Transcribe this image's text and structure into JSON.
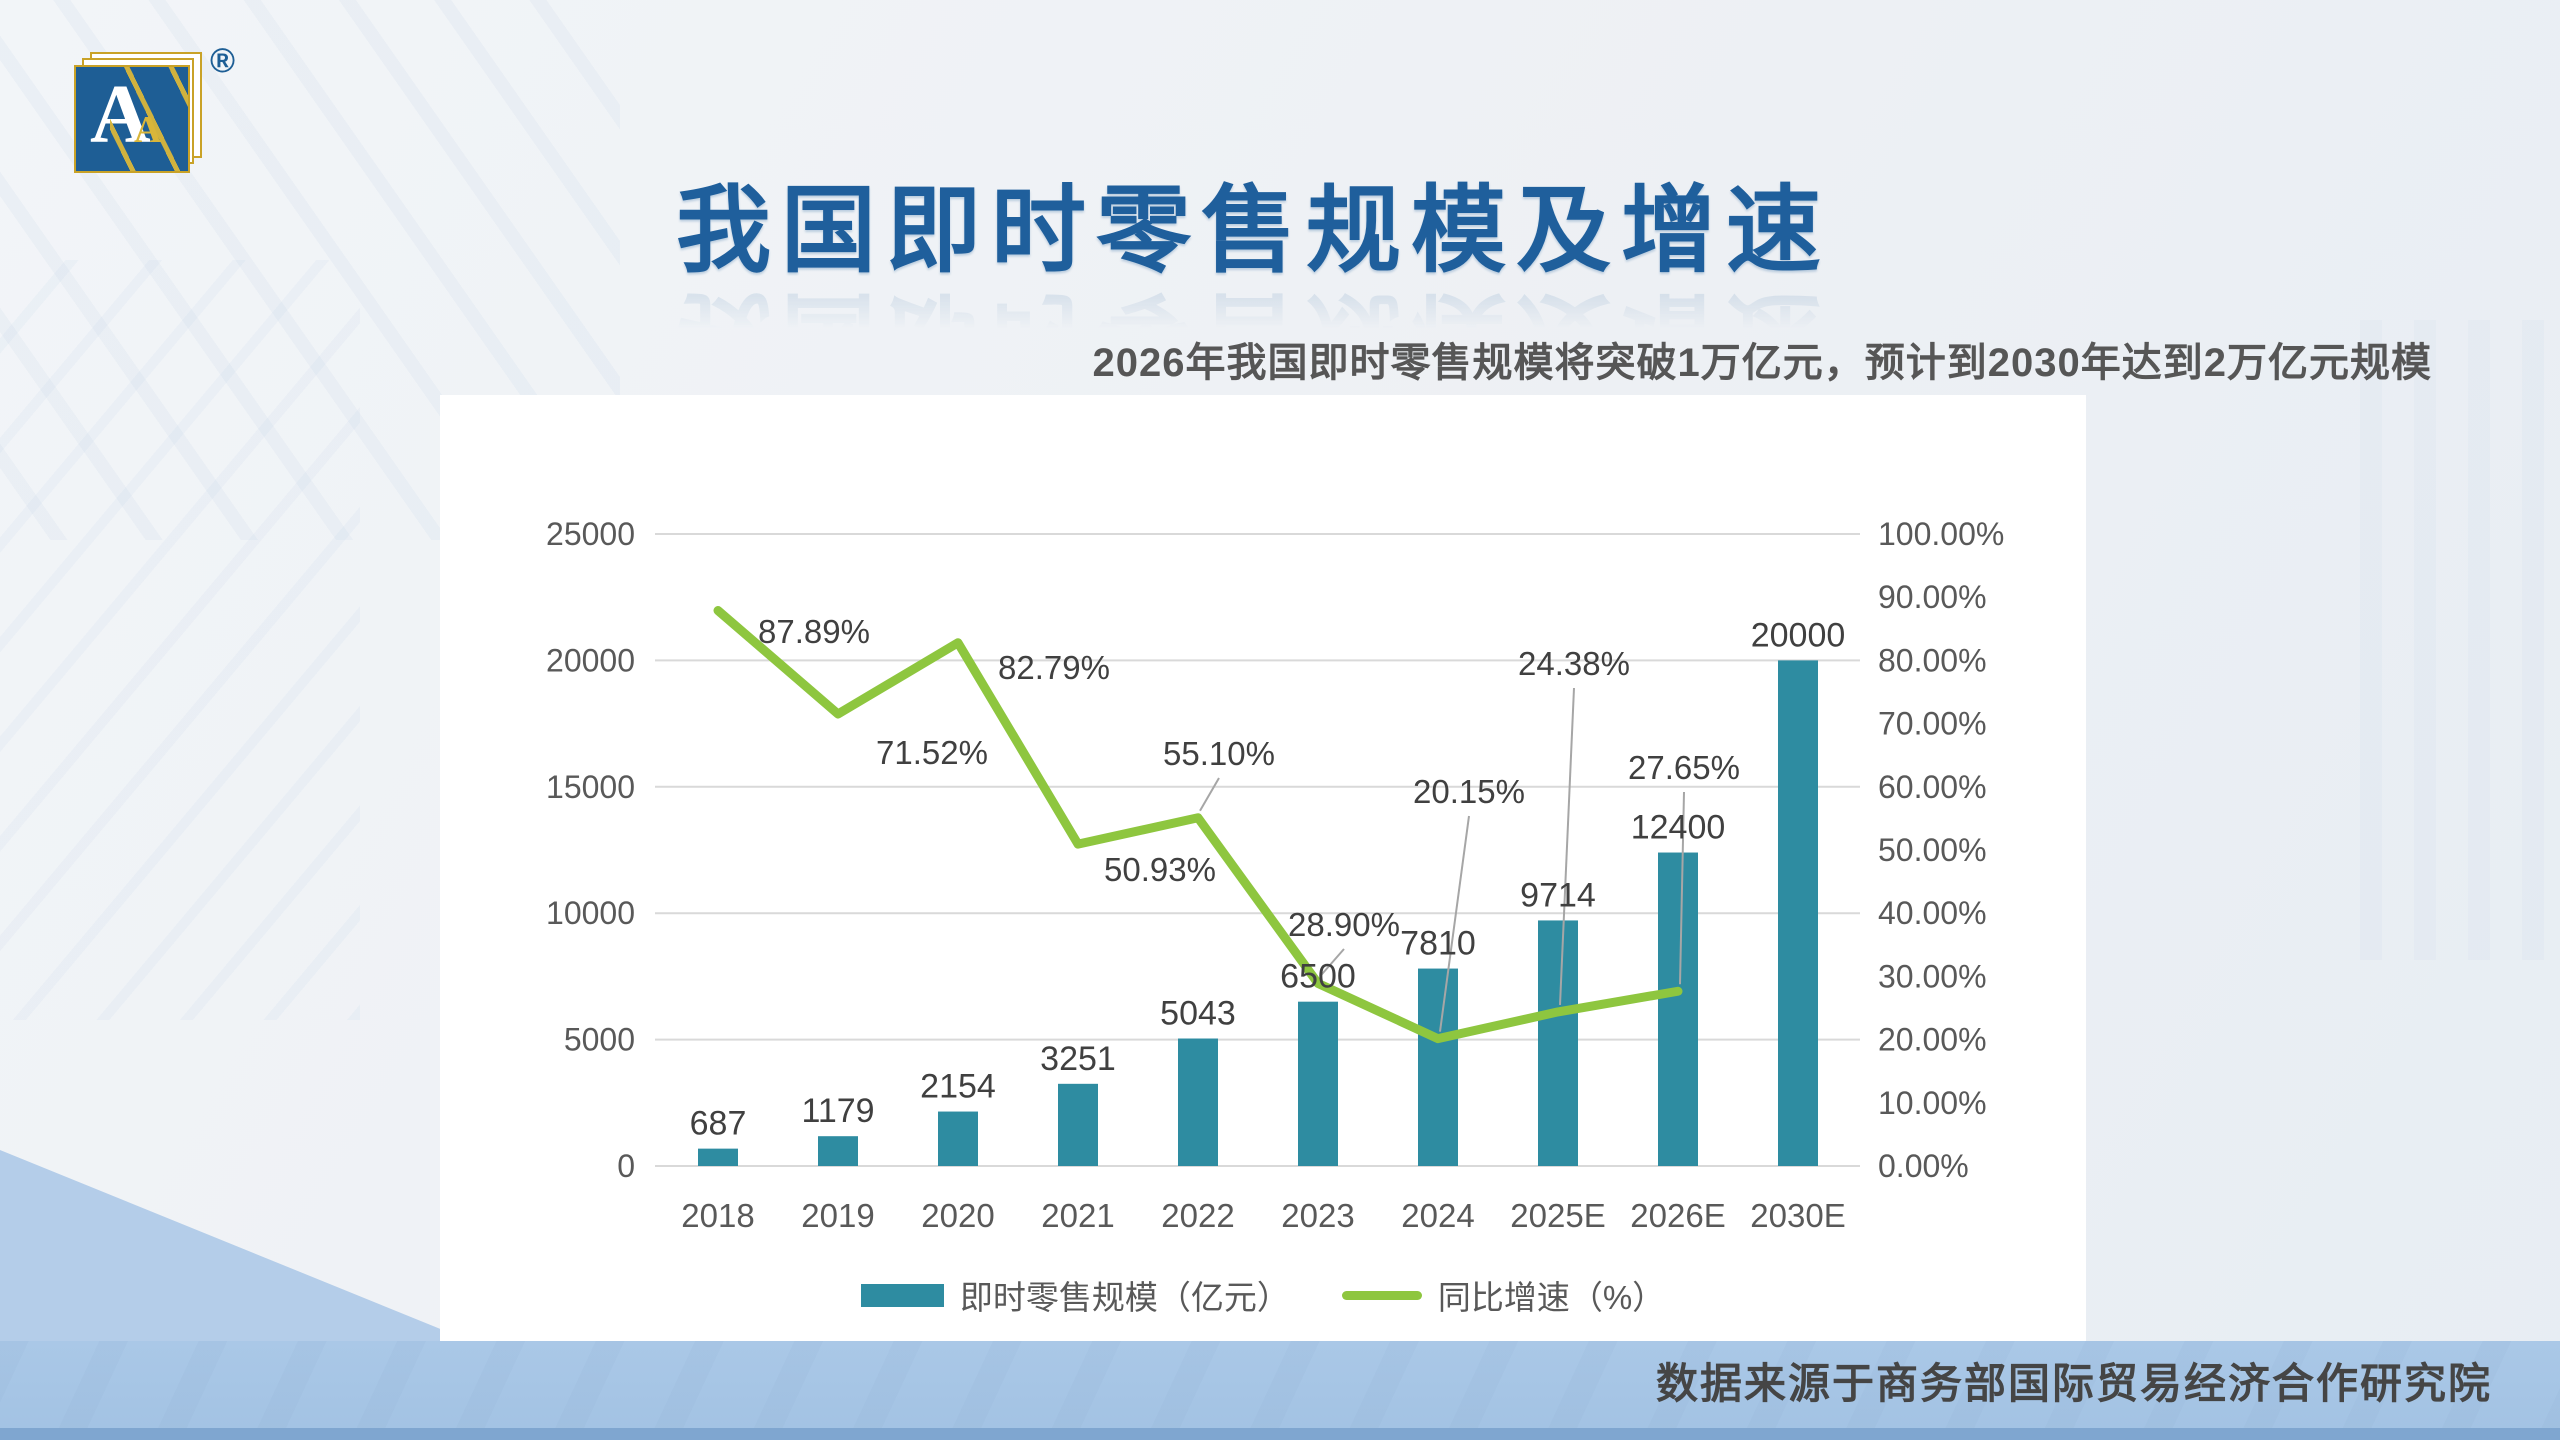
{
  "logo": {
    "letter": "A",
    "small_letter": "A",
    "registered": "®"
  },
  "header": {
    "title": "我国即时零售规模及增速",
    "subtitle": "2026年我国即时零售规模将突破1万亿元，预计到2030年达到2万亿元规模"
  },
  "source_note": "数据来源于商务部国际贸易经济合作研究院",
  "colors": {
    "title_blue": "#1f5f9c",
    "bar_teal": "#2e8ca1",
    "line_green": "#8ec63f",
    "grid_gray": "#d9d9d9",
    "leader_gray": "#a6a6a6",
    "axis_text": "#595959",
    "label_text": "#404040",
    "band_blue": "#a6c5e5"
  },
  "chart_data": {
    "type": "bar+line combo",
    "categories": [
      "2018",
      "2019",
      "2020",
      "2021",
      "2022",
      "2023",
      "2024",
      "2025E",
      "2026E",
      "2030E"
    ],
    "series": [
      {
        "name": "即时零售规模（亿元）",
        "type": "bar",
        "color": "#2e8ca1",
        "values": [
          687,
          1179,
          2154,
          3251,
          5043,
          6500,
          7810,
          9714,
          12400,
          20000
        ],
        "labels": [
          "687",
          "1179",
          "2154",
          "3251",
          "5043",
          "6500",
          "7810",
          "9714",
          "12400",
          "20000"
        ]
      },
      {
        "name": "同比增速（%）",
        "type": "line",
        "color": "#8ec63f",
        "values": [
          87.89,
          71.52,
          82.79,
          50.93,
          55.1,
          28.9,
          20.15,
          24.38,
          27.65,
          null
        ],
        "labels": [
          "87.89%",
          "71.52%",
          "82.79%",
          "50.93%",
          "55.10%",
          "28.90%",
          "20.15%",
          "24.38%",
          "27.65%"
        ]
      }
    ],
    "left_axis": {
      "min": 0,
      "max": 25000,
      "step": 5000,
      "ticks": [
        "0",
        "5000",
        "10000",
        "15000",
        "20000",
        "25000"
      ]
    },
    "right_axis": {
      "min": 0,
      "max": 100,
      "step": 10,
      "ticks": [
        "0.00%",
        "10.00%",
        "20.00%",
        "30.00%",
        "40.00%",
        "50.00%",
        "60.00%",
        "70.00%",
        "80.00%",
        "90.00%",
        "100.00%"
      ]
    },
    "legend": {
      "bar_label": "即时零售规模（亿元）",
      "line_label": "同比增速（%）",
      "position": "bottom"
    },
    "grid": "horizontal"
  }
}
